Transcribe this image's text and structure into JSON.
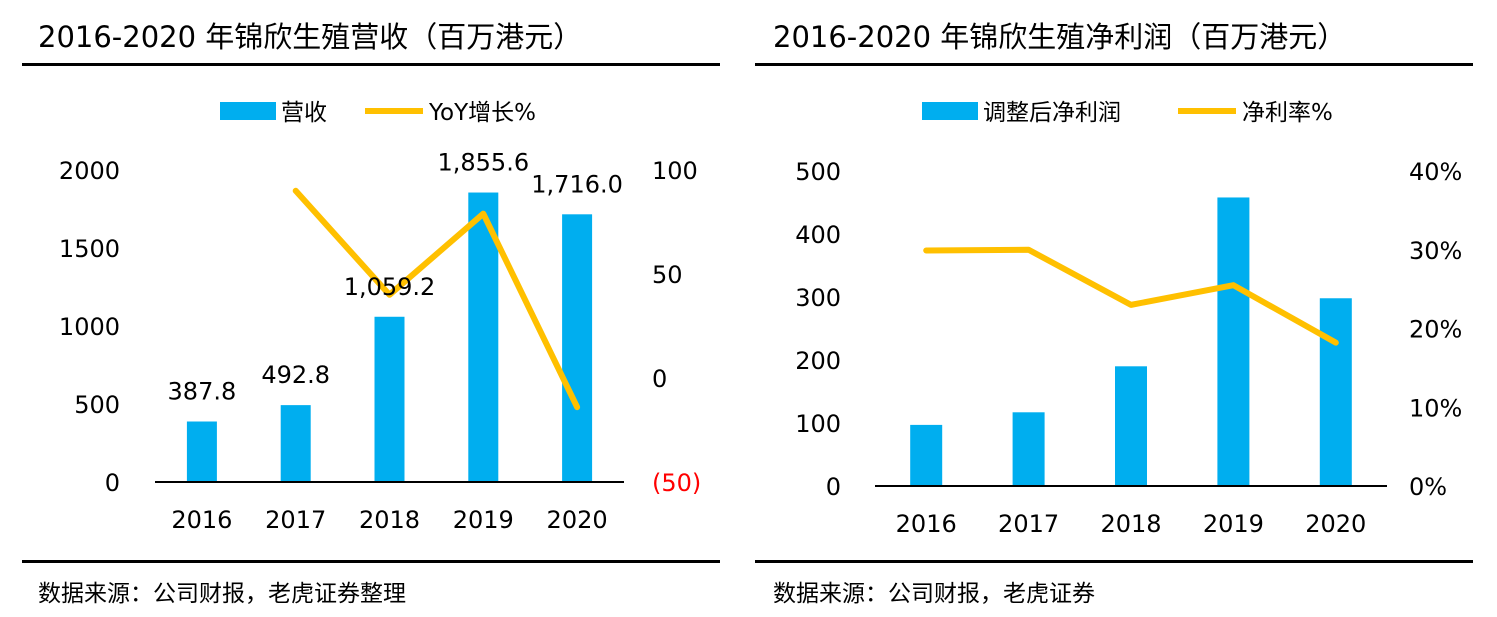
{
  "colors": {
    "bar": "#00AEEF",
    "line": "#FFC000",
    "negative_tick": "#FF0000",
    "axis": "#000000"
  },
  "left": {
    "title": "2016-2020 年锦欣生殖营收（百万港元）",
    "source": "数据来源：公司财报，老虎证券整理"
  },
  "right": {
    "title": "2016-2020 年锦欣生殖净利润（百万港元）",
    "source": "数据来源：公司财报，老虎证券"
  },
  "chart_data": [
    {
      "type": "bar",
      "categories": [
        "2016",
        "2017",
        "2018",
        "2019",
        "2020"
      ],
      "series": [
        {
          "name": "营收",
          "type": "bar",
          "axis": "left",
          "values": [
            387.8,
            492.8,
            1059.2,
            1855.6,
            1716.0
          ]
        },
        {
          "name": "YoY增长%",
          "type": "line",
          "axis": "right",
          "values": [
            null,
            90,
            40,
            79,
            -14
          ]
        }
      ],
      "data_labels": [
        "387.8",
        "492.8",
        "1,059.2",
        "1,855.6",
        "1,716.0"
      ],
      "y_left": {
        "range": [
          0,
          2000
        ],
        "ticks": [
          "0",
          "500",
          "1000",
          "1500",
          "2000"
        ]
      },
      "y_right": {
        "range": [
          -50,
          100
        ],
        "ticks": [
          "(50)",
          "0",
          "50",
          "100"
        ]
      },
      "legend": "top-center",
      "grid": false
    },
    {
      "type": "bar",
      "categories": [
        "2016",
        "2017",
        "2018",
        "2019",
        "2020"
      ],
      "series": [
        {
          "name": "调整后净利润",
          "type": "bar",
          "axis": "left",
          "values": [
            97,
            117,
            190,
            458,
            298
          ]
        },
        {
          "name": "净利率%",
          "type": "line",
          "axis": "right",
          "values": [
            29.9,
            30.0,
            23.0,
            25.5,
            18.2
          ]
        }
      ],
      "y_left": {
        "range": [
          0,
          500
        ],
        "ticks": [
          "0",
          "100",
          "200",
          "300",
          "400",
          "500"
        ]
      },
      "y_right": {
        "range": [
          0,
          40
        ],
        "ticks": [
          "0%",
          "10%",
          "20%",
          "30%",
          "40%"
        ]
      },
      "legend": "top-center",
      "grid": false
    }
  ]
}
